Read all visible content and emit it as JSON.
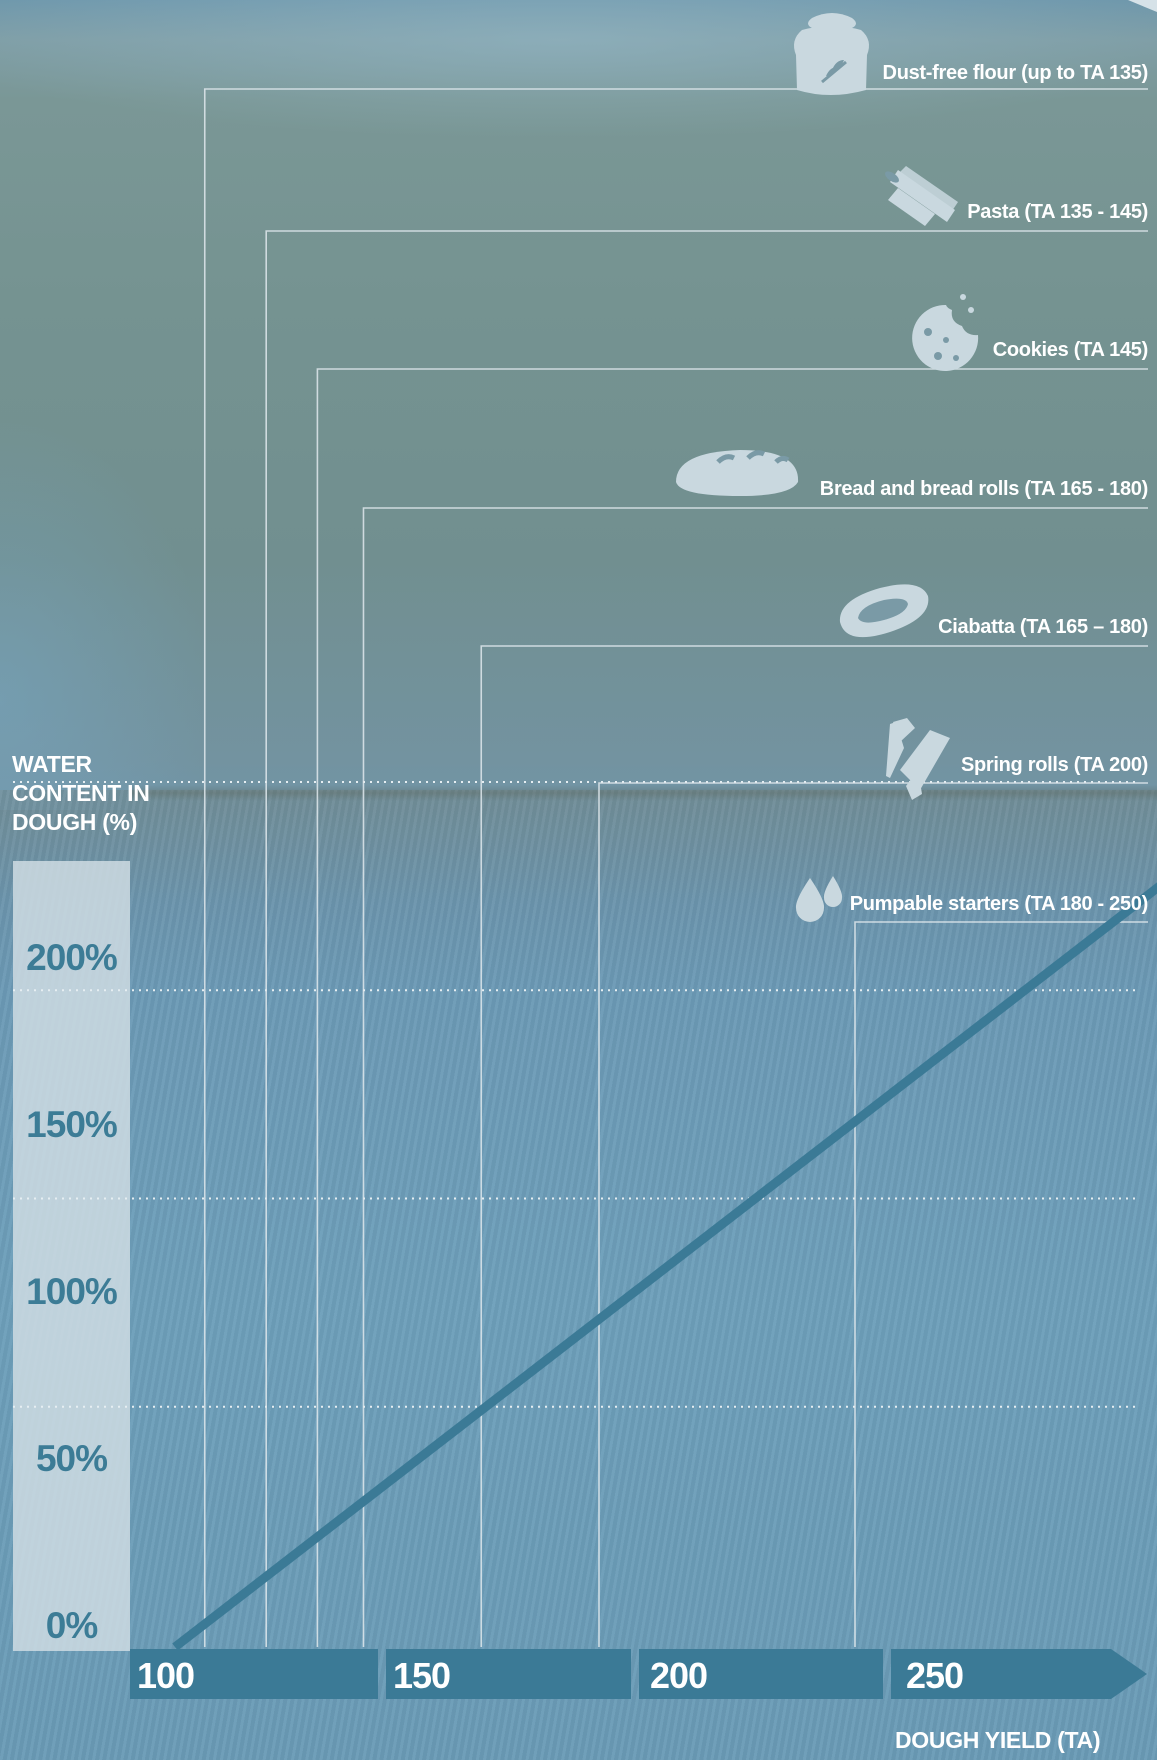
{
  "chart_data": {
    "type": "line",
    "ylabel_lines": [
      "WATER",
      "CONTENT IN",
      "DOUGH  (%)"
    ],
    "xlabel": "DOUGH YIELD (TA)",
    "y_ticks": [
      "0%",
      "50%",
      "100%",
      "150%",
      "200%"
    ],
    "x_ticks": [
      "100",
      "150",
      "200",
      "250"
    ],
    "xlim": [
      100,
      300
    ],
    "ylim": [
      0,
      200
    ],
    "grid": "horizontal dotted",
    "series": [
      {
        "x": [
          100,
          300
        ],
        "y": [
          0,
          190
        ],
        "color": "#3b7a96"
      }
    ],
    "products": [
      {
        "label": "Dust-free flour (up to TA 135)",
        "ta": 123,
        "icon": "flour-sack-icon"
      },
      {
        "label": "Pasta (TA 135 - 145)",
        "ta": 135,
        "icon": "pasta-icon"
      },
      {
        "label": "Cookies (TA 145)",
        "ta": 145,
        "icon": "cookie-icon"
      },
      {
        "label": "Bread and bread rolls (TA 165 - 180)",
        "ta": 154,
        "icon": "bread-loaf-icon"
      },
      {
        "label": "Ciabatta (TA 165 – 180)",
        "ta": 177,
        "icon": "ciabatta-icon"
      },
      {
        "label": "Spring rolls (TA 200)",
        "ta": 200,
        "icon": "spring-rolls-icon"
      },
      {
        "label": "Pumpable starters (TA 180 - 250)",
        "ta": 250,
        "icon": "water-drops-icon"
      }
    ]
  },
  "colors": {
    "line": "#3b7a96",
    "axis_band": "#3b7a96",
    "tick_text": "#3c7c96",
    "label_text": "#ffffff",
    "guides": "#dfe8ec",
    "icons": "#c9d8df"
  }
}
